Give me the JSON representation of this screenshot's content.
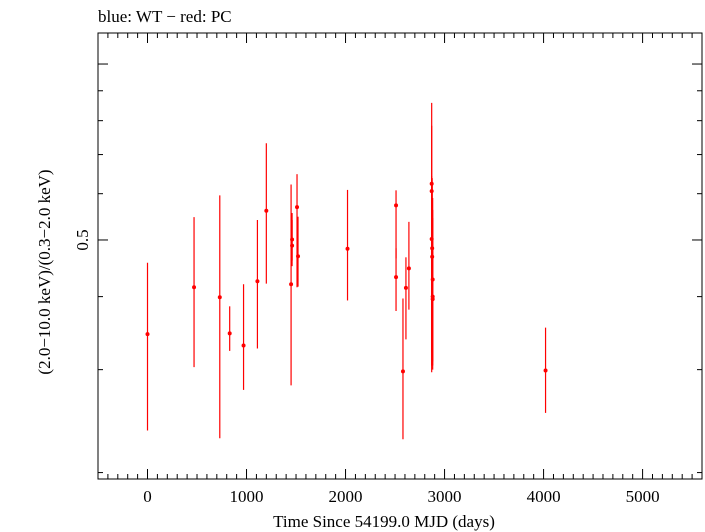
{
  "chart_data": {
    "type": "scatter",
    "title": "blue: WT − red: PC",
    "xlabel": "Time Since 54199.0 MJD (days)",
    "ylabel": "(2.0−10.0 keV)/(0.3−2.0 keV)",
    "xlim": [
      -500,
      5600
    ],
    "xticks": [
      0,
      1000,
      2000,
      3000,
      4000,
      5000
    ],
    "ytick_labels": [
      {
        "value": 0.5,
        "label": "0.5"
      }
    ],
    "y_scale": "log",
    "ylim": [
      0.195,
      1.13
    ],
    "grid": false,
    "colors": {
      "PC": "#ff0000",
      "WT": "#0000ff",
      "axes": "#000000"
    },
    "series": [
      {
        "name": "red: PC",
        "points": [
          {
            "x": 0,
            "y": 0.345,
            "ylo": 0.236,
            "yhi": 0.457
          },
          {
            "x": 470,
            "y": 0.415,
            "ylo": 0.303,
            "yhi": 0.547
          },
          {
            "x": 730,
            "y": 0.399,
            "ylo": 0.229,
            "yhi": 0.596
          },
          {
            "x": 830,
            "y": 0.346,
            "ylo": 0.323,
            "yhi": 0.385
          },
          {
            "x": 970,
            "y": 0.33,
            "ylo": 0.277,
            "yhi": 0.42
          },
          {
            "x": 1110,
            "y": 0.425,
            "ylo": 0.326,
            "yhi": 0.541
          },
          {
            "x": 1200,
            "y": 0.561,
            "ylo": 0.421,
            "yhi": 0.732
          },
          {
            "x": 1450,
            "y": 0.42,
            "ylo": 0.282,
            "yhi": 0.622
          },
          {
            "x": 1460,
            "y": 0.489,
            "ylo": 0.451,
            "yhi": 0.541
          },
          {
            "x": 1460,
            "y": 0.501,
            "ylo": 0.461,
            "yhi": 0.556
          },
          {
            "x": 1510,
            "y": 0.569,
            "ylo": 0.415,
            "yhi": 0.648
          },
          {
            "x": 1520,
            "y": 0.469,
            "ylo": 0.416,
            "yhi": 0.548
          },
          {
            "x": 2020,
            "y": 0.483,
            "ylo": 0.394,
            "yhi": 0.609
          },
          {
            "x": 2510,
            "y": 0.573,
            "ylo": 0.465,
            "yhi": 0.608
          },
          {
            "x": 2510,
            "y": 0.432,
            "ylo": 0.378,
            "yhi": 0.484
          },
          {
            "x": 2580,
            "y": 0.298,
            "ylo": 0.228,
            "yhi": 0.397
          },
          {
            "x": 2610,
            "y": 0.414,
            "ylo": 0.338,
            "yhi": 0.467
          },
          {
            "x": 2640,
            "y": 0.447,
            "ylo": 0.38,
            "yhi": 0.537
          },
          {
            "x": 2870,
            "y": 0.624,
            "ylo": 0.297,
            "yhi": 0.784
          },
          {
            "x": 2870,
            "y": 0.606,
            "ylo": 0.305,
            "yhi": 0.858
          },
          {
            "x": 2870,
            "y": 0.502,
            "ylo": 0.321,
            "yhi": 0.643
          },
          {
            "x": 2875,
            "y": 0.468,
            "ylo": 0.337,
            "yhi": 0.627
          },
          {
            "x": 2875,
            "y": 0.484,
            "ylo": 0.343,
            "yhi": 0.638
          },
          {
            "x": 2880,
            "y": 0.396,
            "ylo": 0.3,
            "yhi": 0.545
          },
          {
            "x": 2880,
            "y": 0.4,
            "ylo": 0.305,
            "yhi": 0.563
          },
          {
            "x": 2880,
            "y": 0.428,
            "ylo": 0.31,
            "yhi": 0.59
          },
          {
            "x": 4020,
            "y": 0.299,
            "ylo": 0.253,
            "yhi": 0.354
          }
        ]
      }
    ]
  }
}
